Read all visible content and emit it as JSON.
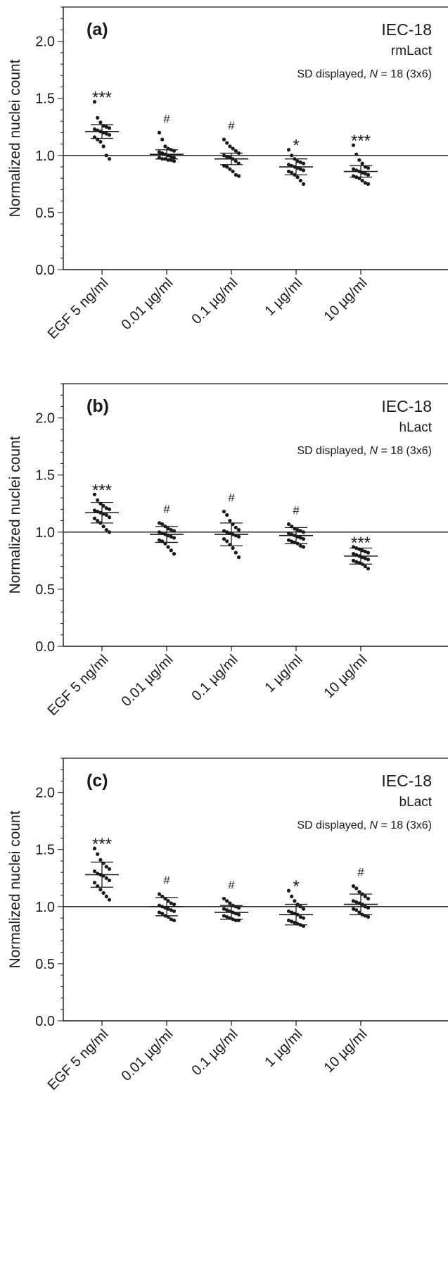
{
  "chart_data": [
    {
      "type": "scatter",
      "panel_label": "(a)",
      "cell_line": "IEC-18",
      "protein": "rmLact",
      "note_prefix": "SD displayed, ",
      "note_n": "N",
      "note_suffix": " = 18 (3x6)",
      "ylabel": "Normalized nuclei count",
      "ylim": [
        0,
        2.3
      ],
      "yticks": [
        "0.0",
        "0.5",
        "1.0",
        "1.5",
        "2.0"
      ],
      "reference_line": 1.0,
      "categories": [
        "EGF 5 ng/ml",
        "0.01 µg/ml",
        "0.1 µg/ml",
        "1 µg/ml",
        "10 µg/ml"
      ],
      "mean": [
        1.21,
        1.01,
        0.97,
        0.9,
        0.86
      ],
      "sd": [
        0.06,
        0.04,
        0.05,
        0.07,
        0.05
      ],
      "significance": [
        "***",
        "#",
        "#",
        "*",
        "***"
      ],
      "points": [
        [
          1.47,
          1.33,
          1.29,
          1.26,
          1.25,
          1.24,
          1.23,
          1.22,
          1.21,
          1.2,
          1.19,
          1.18,
          1.16,
          1.14,
          1.12,
          1.08,
          1.0,
          0.97
        ],
        [
          1.2,
          1.14,
          1.08,
          1.06,
          1.05,
          1.04,
          1.03,
          1.02,
          1.01,
          1.0,
          0.99,
          0.98,
          0.98,
          0.97,
          0.97,
          0.96,
          0.96,
          0.95
        ],
        [
          1.14,
          1.11,
          1.08,
          1.06,
          1.04,
          1.02,
          1.0,
          0.99,
          0.98,
          0.97,
          0.95,
          0.93,
          0.91,
          0.9,
          0.88,
          0.86,
          0.83,
          0.82
        ],
        [
          1.05,
          1.0,
          0.97,
          0.95,
          0.94,
          0.93,
          0.92,
          0.91,
          0.9,
          0.89,
          0.88,
          0.87,
          0.86,
          0.85,
          0.83,
          0.81,
          0.78,
          0.75
        ],
        [
          1.09,
          1.01,
          0.96,
          0.93,
          0.9,
          0.89,
          0.88,
          0.87,
          0.86,
          0.85,
          0.84,
          0.83,
          0.82,
          0.81,
          0.8,
          0.78,
          0.76,
          0.75
        ]
      ]
    },
    {
      "type": "scatter",
      "panel_label": "(b)",
      "cell_line": "IEC-18",
      "protein": "hLact",
      "note_prefix": "SD displayed, ",
      "note_n": "N",
      "note_suffix": " = 18 (3x6)",
      "ylabel": "Normalized nuclei count",
      "ylim": [
        0,
        2.3
      ],
      "yticks": [
        "0.0",
        "0.5",
        "1.0",
        "1.5",
        "2.0"
      ],
      "reference_line": 1.0,
      "categories": [
        "EGF 5 ng/ml",
        "0.01 µg/ml",
        "0.1 µg/ml",
        "1 µg/ml",
        "10 µg/ml"
      ],
      "mean": [
        1.17,
        0.98,
        0.98,
        0.97,
        0.79
      ],
      "sd": [
        0.09,
        0.07,
        0.1,
        0.07,
        0.07
      ],
      "significance": [
        "***",
        "#",
        "#",
        "#",
        "***"
      ],
      "points": [
        [
          1.33,
          1.28,
          1.25,
          1.23,
          1.21,
          1.2,
          1.19,
          1.18,
          1.17,
          1.16,
          1.15,
          1.13,
          1.12,
          1.1,
          1.08,
          1.05,
          1.02,
          1.0
        ],
        [
          1.08,
          1.07,
          1.05,
          1.03,
          1.02,
          1.01,
          1.0,
          0.99,
          0.98,
          0.97,
          0.96,
          0.95,
          0.93,
          0.92,
          0.9,
          0.87,
          0.84,
          0.81
        ],
        [
          1.18,
          1.15,
          1.1,
          1.07,
          1.04,
          1.02,
          1.01,
          1.0,
          0.99,
          0.98,
          0.97,
          0.96,
          0.94,
          0.92,
          0.89,
          0.86,
          0.82,
          0.78
        ],
        [
          1.07,
          1.05,
          1.03,
          1.02,
          1.01,
          1.0,
          0.99,
          0.98,
          0.97,
          0.96,
          0.95,
          0.94,
          0.93,
          0.92,
          0.91,
          0.9,
          0.88,
          0.87
        ],
        [
          0.87,
          0.86,
          0.85,
          0.84,
          0.83,
          0.82,
          0.81,
          0.8,
          0.79,
          0.78,
          0.77,
          0.76,
          0.75,
          0.74,
          0.73,
          0.72,
          0.7,
          0.68
        ]
      ]
    },
    {
      "type": "scatter",
      "panel_label": "(c)",
      "cell_line": "IEC-18",
      "protein": "bLact",
      "note_prefix": "SD displayed, ",
      "note_n": "N",
      "note_suffix": " = 18 (3x6)",
      "ylabel": "Normalized nuclei count",
      "ylim": [
        0,
        2.3
      ],
      "yticks": [
        "0.0",
        "0.5",
        "1.0",
        "1.5",
        "2.0"
      ],
      "reference_line": 1.0,
      "categories": [
        "EGF 5 ng/ml",
        "0.01 µg/ml",
        "0.1 µg/ml",
        "1 µg/ml",
        "10 µg/ml"
      ],
      "mean": [
        1.28,
        1.0,
        0.95,
        0.93,
        1.02
      ],
      "sd": [
        0.11,
        0.08,
        0.06,
        0.09,
        0.09
      ],
      "significance": [
        "***",
        "#",
        "#",
        "*",
        "#"
      ],
      "points": [
        [
          1.51,
          1.46,
          1.41,
          1.38,
          1.35,
          1.33,
          1.31,
          1.29,
          1.28,
          1.27,
          1.25,
          1.23,
          1.21,
          1.18,
          1.15,
          1.12,
          1.09,
          1.06
        ],
        [
          1.11,
          1.09,
          1.07,
          1.05,
          1.03,
          1.02,
          1.01,
          1.0,
          0.99,
          0.98,
          0.97,
          0.96,
          0.95,
          0.94,
          0.92,
          0.91,
          0.89,
          0.88
        ],
        [
          1.07,
          1.05,
          1.03,
          1.01,
          1.0,
          0.99,
          0.98,
          0.97,
          0.96,
          0.95,
          0.94,
          0.93,
          0.92,
          0.91,
          0.9,
          0.89,
          0.88,
          0.88
        ],
        [
          1.14,
          1.09,
          1.05,
          1.02,
          1.0,
          0.98,
          0.96,
          0.95,
          0.94,
          0.93,
          0.91,
          0.9,
          0.88,
          0.87,
          0.86,
          0.85,
          0.84,
          0.83
        ],
        [
          1.18,
          1.16,
          1.13,
          1.11,
          1.09,
          1.07,
          1.05,
          1.04,
          1.03,
          1.02,
          1.0,
          0.99,
          0.98,
          0.97,
          0.95,
          0.93,
          0.92,
          0.91
        ]
      ]
    }
  ]
}
